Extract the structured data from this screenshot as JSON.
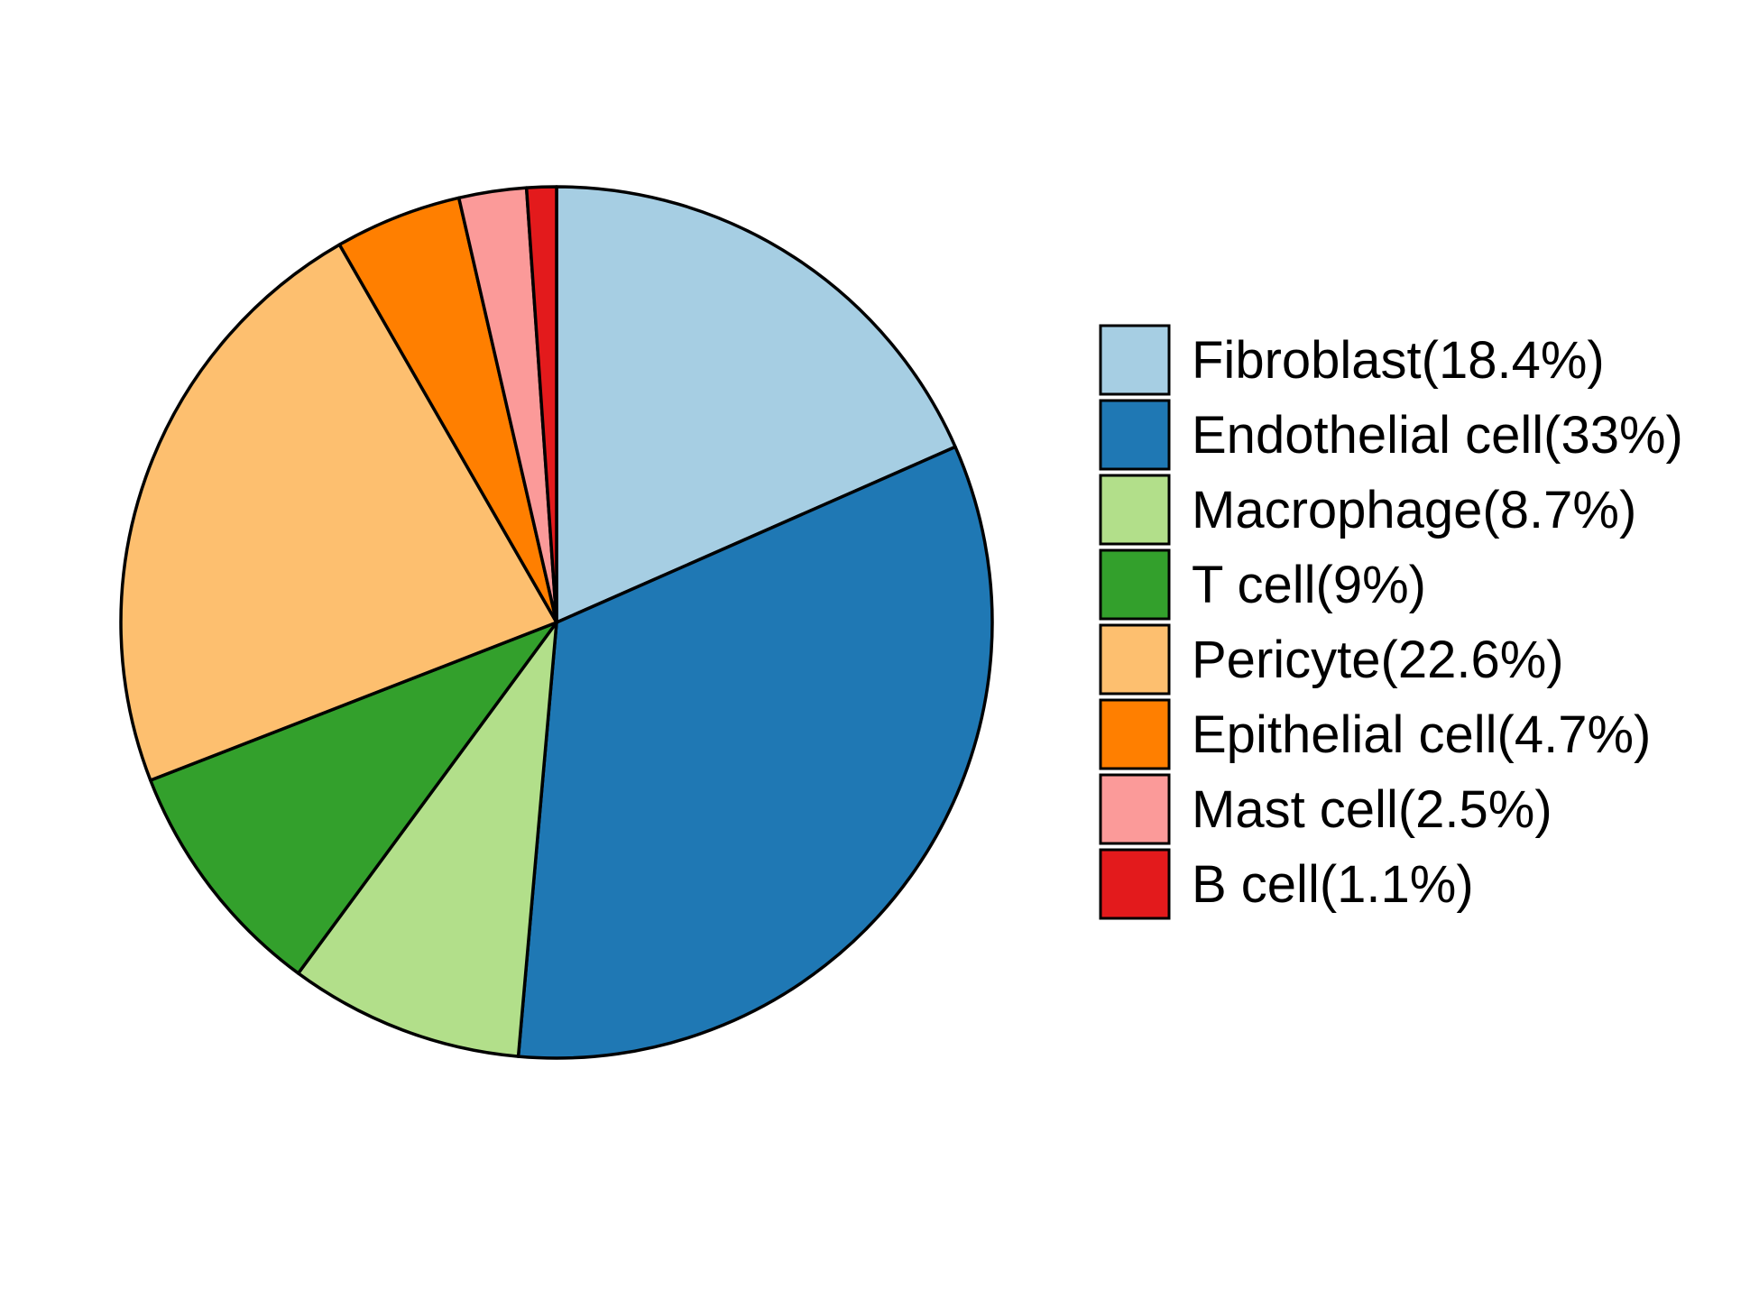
{
  "chart_data": {
    "type": "pie",
    "title": "",
    "legend_position": "right",
    "start_angle_deg": 90,
    "direction": "clockwise",
    "slices": [
      {
        "label": "Fibroblast(18.4%)",
        "name": "Fibroblast",
        "value": 18.4,
        "color": "#A6CEE3"
      },
      {
        "label": "Endothelial cell(33%)",
        "name": "Endothelial cell",
        "value": 33.0,
        "color": "#1F78B4"
      },
      {
        "label": "Macrophage(8.7%)",
        "name": "Macrophage",
        "value": 8.7,
        "color": "#B2DF8A"
      },
      {
        "label": "T cell(9%)",
        "name": "T cell",
        "value": 9.0,
        "color": "#33A02C"
      },
      {
        "label": "Pericyte(22.6%)",
        "name": "Pericyte",
        "value": 22.6,
        "color": "#FDBF6F"
      },
      {
        "label": "Epithelial cell(4.7%)",
        "name": "Epithelial cell",
        "value": 4.7,
        "color": "#FF7F00"
      },
      {
        "label": "Mast cell(2.5%)",
        "name": "Mast cell",
        "value": 2.5,
        "color": "#FB9A99"
      },
      {
        "label": "B cell(1.1%)",
        "name": "B cell",
        "value": 1.1,
        "color": "#E31A1C"
      }
    ]
  }
}
